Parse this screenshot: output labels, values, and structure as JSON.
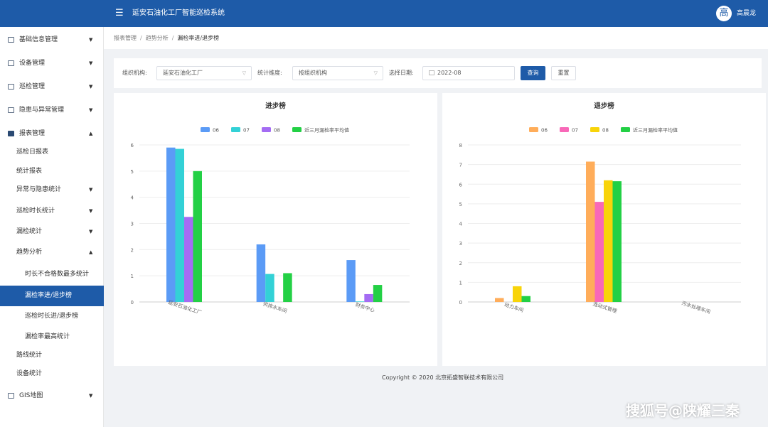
{
  "header": {
    "app_title": "延安石油化工厂智能巡检系统",
    "menu_icon": "menu-fold-icon",
    "avatar_text": "高",
    "user_name": "高晨龙"
  },
  "sidebar": {
    "items": [
      {
        "label": "基础信息管理",
        "icon": "database-icon",
        "arrow": "▼"
      },
      {
        "label": "设备管理",
        "icon": "device-icon",
        "arrow": "▼"
      },
      {
        "label": "巡检管理",
        "icon": "inspection-icon",
        "arrow": "▼"
      },
      {
        "label": "隐患与异常管理",
        "icon": "warning-icon",
        "arrow": "▼"
      },
      {
        "label": "报表管理",
        "icon": "chart-icon",
        "arrow": "▲"
      },
      {
        "label": "巡检日报表"
      },
      {
        "label": "统计报表"
      },
      {
        "label": "异常与隐患统计",
        "arrow": "▼"
      },
      {
        "label": "巡检时长统计",
        "arrow": "▼"
      },
      {
        "label": "漏检统计",
        "arrow": "▼"
      },
      {
        "label": "趋势分析",
        "arrow": "▲"
      },
      {
        "label": "时长不合格数最多统计"
      },
      {
        "label": "漏检率进/退步榜"
      },
      {
        "label": "巡检时长进/退步榜"
      },
      {
        "label": "漏检率最高统计"
      },
      {
        "label": "路线统计"
      },
      {
        "label": "设备统计"
      },
      {
        "label": "GIS地图",
        "icon": "map-icon",
        "arrow": "▼"
      }
    ]
  },
  "breadcrumb": [
    "报表管理",
    "趋势分析",
    "漏检率进/退步榜"
  ],
  "filters": {
    "org_label": "组织机构:",
    "org_value": "延安石油化工厂",
    "dim_label": "统计维度:",
    "dim_value": "按组织机构",
    "date_label": "选择日期:",
    "date_value": "2022-08",
    "query_button": "查询",
    "reset_button": "重置"
  },
  "chart_data": [
    {
      "type": "bar",
      "title": "进步榜",
      "categories": [
        "延安石油化工厂",
        "供排水车间",
        "财务中心"
      ],
      "ylim": [
        0,
        6
      ],
      "yticks": [
        0,
        1,
        2,
        3,
        4,
        5,
        6
      ],
      "grid": true,
      "legend_position": "top",
      "series": [
        {
          "name": "06",
          "color": "#5b9bf6",
          "values": [
            5.9,
            2.2,
            1.6
          ]
        },
        {
          "name": "07",
          "color": "#33d1d6",
          "values": [
            5.85,
            1.07,
            0.02
          ]
        },
        {
          "name": "08",
          "color": "#a46cf3",
          "values": [
            3.25,
            0,
            0.3
          ]
        },
        {
          "name": "近三月漏检率平均值",
          "color": "#23d045",
          "values": [
            5.0,
            1.1,
            0.65
          ]
        }
      ]
    },
    {
      "type": "bar",
      "title": "退步榜",
      "categories": [
        "动力车间",
        "连动式管理",
        "污水处理车间"
      ],
      "ylim": [
        0,
        8
      ],
      "yticks": [
        0,
        1,
        2,
        3,
        4,
        5,
        6,
        7,
        8
      ],
      "grid": true,
      "legend_position": "top",
      "series": [
        {
          "name": "06",
          "color": "#ffad5a",
          "values": [
            0.2,
            7.15,
            0
          ]
        },
        {
          "name": "07",
          "color": "#f868b8",
          "values": [
            0,
            5.1,
            0
          ]
        },
        {
          "name": "08",
          "color": "#f8d40a",
          "values": [
            0.8,
            6.2,
            0
          ]
        },
        {
          "name": "近三月漏检率平均值",
          "color": "#23d045",
          "values": [
            0.3,
            6.15,
            0
          ]
        }
      ]
    }
  ],
  "footer": {
    "copyright": "Copyright © 2020 北京拓盛智联技术有限公司",
    "watermark": "搜狐号@陕耀三秦"
  }
}
